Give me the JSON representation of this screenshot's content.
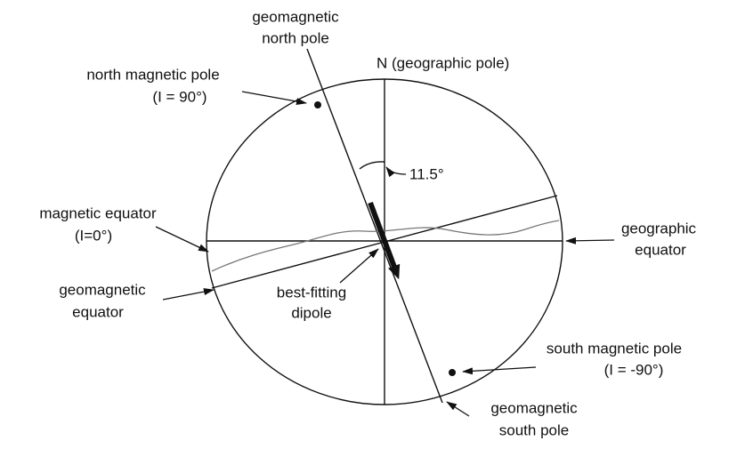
{
  "labels": {
    "geomagnetic_north_pole": [
      "geomagnetic",
      "north pole"
    ],
    "geographic_pole": "N (geographic pole)",
    "north_magnetic_pole": [
      "north magnetic pole",
      "(I = 90°)"
    ],
    "angle": "11.5°",
    "magnetic_equator": [
      "magnetic equator",
      "(I=0°)"
    ],
    "geographic_equator": [
      "geographic",
      "equator"
    ],
    "geomagnetic_equator": [
      "geomagnetic",
      "equator"
    ],
    "best_fitting_dipole": [
      "best-fitting",
      "dipole"
    ],
    "south_magnetic_pole": [
      "south magnetic pole",
      "(I = -90°)"
    ],
    "geomagnetic_south_pole": [
      "geomagnetic",
      "south pole"
    ]
  }
}
